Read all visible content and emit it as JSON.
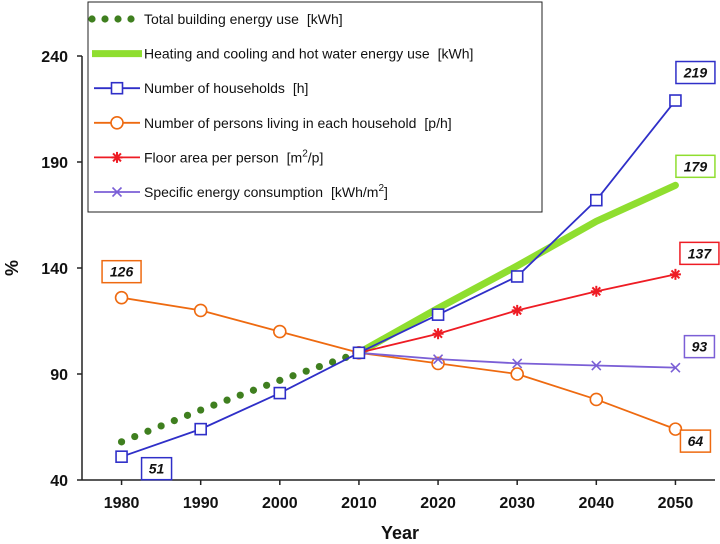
{
  "chart_data": {
    "type": "line",
    "xlabel": "Year",
    "ylabel": "%",
    "ylim": [
      40,
      240
    ],
    "xlim": [
      1975,
      2055
    ],
    "x": [
      1980,
      1990,
      2000,
      2010,
      2020,
      2030,
      2040,
      2050
    ],
    "x_ticks": [
      "1980",
      "1990",
      "2000",
      "2010",
      "2020",
      "2030",
      "2040",
      "2050"
    ],
    "y_ticks": [
      "40",
      "90",
      "140",
      "190",
      "240"
    ],
    "grid": false,
    "legend_position": "top-left",
    "series": [
      {
        "name": "Total building energy use",
        "unit": "[kWh]",
        "color": "#3f7f1f",
        "style": "dotted",
        "marker": "none",
        "points": [
          [
            1980,
            58
          ],
          [
            1990,
            73
          ],
          [
            2000,
            87
          ],
          [
            2010,
            100
          ]
        ]
      },
      {
        "name": "Heating and cooling and hot water energy use",
        "unit": "[kWh]",
        "color": "#8fde2f",
        "style": "thick",
        "marker": "none",
        "points": [
          [
            2010,
            100
          ],
          [
            2020,
            121
          ],
          [
            2030,
            141
          ],
          [
            2040,
            162
          ],
          [
            2050,
            179
          ]
        ],
        "end_label": "179"
      },
      {
        "name": "Number of households",
        "unit": "[h]",
        "color": "#2f2fc8",
        "style": "solid",
        "marker": "square",
        "points": [
          [
            1980,
            51
          ],
          [
            1990,
            64
          ],
          [
            2000,
            81
          ],
          [
            2010,
            100
          ],
          [
            2020,
            118
          ],
          [
            2030,
            136
          ],
          [
            2040,
            172
          ],
          [
            2050,
            219
          ]
        ],
        "start_label": "51",
        "end_label": "219"
      },
      {
        "name": "Number of persons living in each household",
        "unit": "[p/h]",
        "color": "#ee6a10",
        "style": "solid",
        "marker": "circle",
        "points": [
          [
            1980,
            126
          ],
          [
            1990,
            120
          ],
          [
            2000,
            110
          ],
          [
            2010,
            100
          ],
          [
            2020,
            95
          ],
          [
            2030,
            90
          ],
          [
            2040,
            78
          ],
          [
            2050,
            64
          ]
        ],
        "start_label": "126",
        "end_label": "64"
      },
      {
        "name": "Floor area per person",
        "unit_pre": "[m",
        "unit_sup": "2",
        "unit_post": "/p]",
        "color": "#ee1c24",
        "style": "solid",
        "marker": "asterisk",
        "points": [
          [
            2010,
            100
          ],
          [
            2020,
            109
          ],
          [
            2030,
            120
          ],
          [
            2040,
            129
          ],
          [
            2050,
            137
          ]
        ],
        "end_label": "137"
      },
      {
        "name": "Specific energy consumption",
        "unit_pre": "[kWh/m",
        "unit_sup": "2",
        "unit_post": "]",
        "color": "#7b5fd6",
        "style": "solid",
        "marker": "x",
        "points": [
          [
            2010,
            100
          ],
          [
            2020,
            97
          ],
          [
            2030,
            95
          ],
          [
            2040,
            94
          ],
          [
            2050,
            93
          ]
        ],
        "end_label": "93"
      }
    ]
  }
}
